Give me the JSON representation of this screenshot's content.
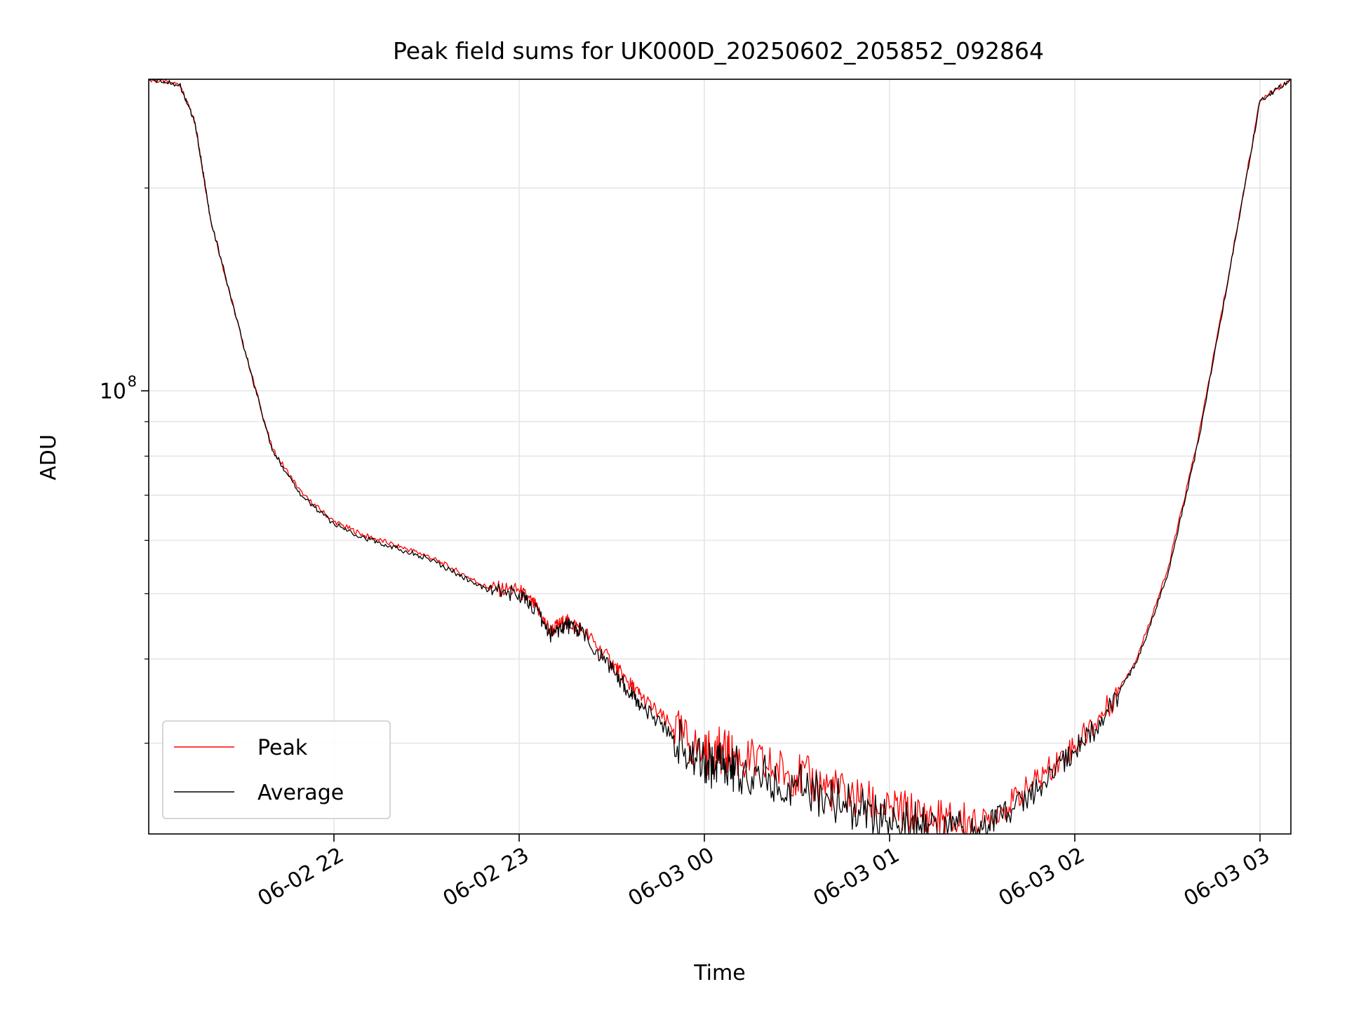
{
  "chart_data": {
    "type": "line",
    "title": "Peak field sums for UK000D_20250602_205852_092864",
    "xlabel": "Time",
    "ylabel": "ADU",
    "yscale": "log",
    "xlim": [
      "2025-06-02T21:00",
      "2025-06-03T03:10"
    ],
    "ylim": [
      22000000,
      290000000
    ],
    "xticks": [
      {
        "value": "2025-06-02T22:00",
        "label": "06-02 22"
      },
      {
        "value": "2025-06-02T23:00",
        "label": "06-02 23"
      },
      {
        "value": "2025-06-03T00:00",
        "label": "06-03 00"
      },
      {
        "value": "2025-06-03T01:00",
        "label": "06-03 01"
      },
      {
        "value": "2025-06-03T02:00",
        "label": "06-03 02"
      },
      {
        "value": "2025-06-03T03:00",
        "label": "06-03 03"
      }
    ],
    "yticks_major": [
      {
        "value": 100000000,
        "label_base": "10",
        "label_exp": "8"
      }
    ],
    "yticks_minor": [
      30000000,
      40000000,
      50000000,
      60000000,
      70000000,
      80000000,
      90000000,
      200000000
    ],
    "grid": true,
    "legend_position": "lower-left",
    "series": [
      {
        "name": "Peak",
        "color": "#ff0000",
        "x": [
          "2025-06-02T21:00",
          "2025-06-02T21:10",
          "2025-06-02T21:15",
          "2025-06-02T21:20",
          "2025-06-02T21:30",
          "2025-06-02T21:40",
          "2025-06-02T21:50",
          "2025-06-02T22:00",
          "2025-06-02T22:10",
          "2025-06-02T22:20",
          "2025-06-02T22:30",
          "2025-06-02T22:40",
          "2025-06-02T22:50",
          "2025-06-02T23:00",
          "2025-06-02T23:05",
          "2025-06-02T23:10",
          "2025-06-02T23:15",
          "2025-06-02T23:20",
          "2025-06-02T23:30",
          "2025-06-02T23:35",
          "2025-06-02T23:40",
          "2025-06-02T23:50",
          "2025-06-03T00:00",
          "2025-06-03T00:05",
          "2025-06-03T00:10",
          "2025-06-03T00:20",
          "2025-06-03T00:30",
          "2025-06-03T00:40",
          "2025-06-03T00:50",
          "2025-06-03T01:00",
          "2025-06-03T01:10",
          "2025-06-03T01:20",
          "2025-06-03T01:30",
          "2025-06-03T01:40",
          "2025-06-03T01:50",
          "2025-06-03T02:00",
          "2025-06-03T02:10",
          "2025-06-03T02:20",
          "2025-06-03T02:30",
          "2025-06-03T02:40",
          "2025-06-03T02:50",
          "2025-06-03T03:00",
          "2025-06-03T03:10"
        ],
        "y": [
          290000000,
          285000000,
          250000000,
          180000000,
          120000000,
          82000000,
          70000000,
          64000000,
          61000000,
          59000000,
          57000000,
          54000000,
          51000000,
          50500000,
          48000000,
          44000000,
          45500000,
          44500000,
          39500000,
          37000000,
          35000000,
          31500000,
          28800000,
          29300000,
          28600000,
          27700000,
          26900000,
          25800000,
          24600000,
          24000000,
          23300000,
          22900000,
          22900000,
          24600000,
          27000000,
          29800000,
          33500000,
          40000000,
          54000000,
          85000000,
          150000000,
          270000000,
          290000000
        ]
      },
      {
        "name": "Average",
        "color": "#000000",
        "x": [
          "2025-06-02T21:00",
          "2025-06-02T21:10",
          "2025-06-02T21:15",
          "2025-06-02T21:20",
          "2025-06-02T21:30",
          "2025-06-02T21:40",
          "2025-06-02T21:50",
          "2025-06-02T22:00",
          "2025-06-02T22:10",
          "2025-06-02T22:20",
          "2025-06-02T22:30",
          "2025-06-02T22:40",
          "2025-06-02T22:50",
          "2025-06-02T23:00",
          "2025-06-02T23:05",
          "2025-06-02T23:10",
          "2025-06-02T23:15",
          "2025-06-02T23:20",
          "2025-06-02T23:30",
          "2025-06-02T23:35",
          "2025-06-02T23:40",
          "2025-06-02T23:50",
          "2025-06-03T00:00",
          "2025-06-03T00:05",
          "2025-06-03T00:10",
          "2025-06-03T00:20",
          "2025-06-03T00:30",
          "2025-06-03T00:40",
          "2025-06-03T00:50",
          "2025-06-03T01:00",
          "2025-06-03T01:10",
          "2025-06-03T01:20",
          "2025-06-03T01:30",
          "2025-06-03T01:40",
          "2025-06-03T01:50",
          "2025-06-03T02:00",
          "2025-06-03T02:10",
          "2025-06-03T02:20",
          "2025-06-03T02:30",
          "2025-06-03T02:40",
          "2025-06-03T02:50",
          "2025-06-03T03:00",
          "2025-06-03T03:10"
        ],
        "y": [
          290000000,
          285000000,
          250000000,
          180000000,
          120000000,
          81500000,
          69500000,
          63500000,
          60500000,
          58500000,
          56500000,
          53500000,
          50500000,
          50000000,
          47500000,
          43500000,
          45000000,
          44000000,
          38500000,
          36000000,
          34000000,
          30800000,
          27700000,
          28000000,
          27500000,
          26600000,
          25900000,
          25000000,
          23900000,
          23300000,
          22700000,
          22200000,
          22300000,
          24000000,
          26300000,
          29200000,
          33000000,
          39500000,
          53000000,
          84000000,
          149000000,
          269000000,
          290000000
        ]
      }
    ]
  }
}
